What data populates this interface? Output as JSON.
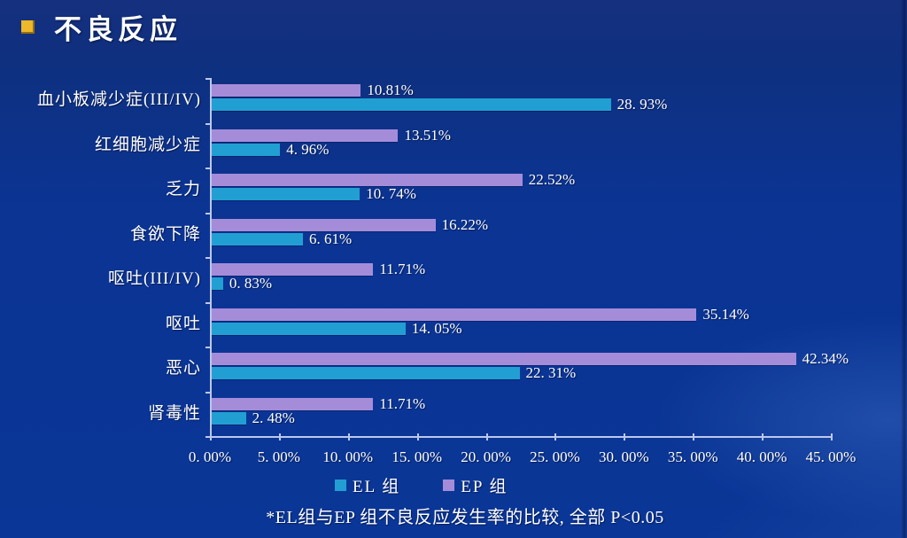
{
  "slide": {
    "title": "不良反应",
    "footnote": "*EL组与EP 组不良反应发生率的比较, 全部 P<0.05"
  },
  "colors": {
    "background_top": "#15307f",
    "background_bottom": "#0a3697",
    "el_series": "#219fd3",
    "ep_series": "#a58cd9",
    "axis": "#bdc7ec",
    "text": "#ffffff",
    "title_bullet": "#edb829"
  },
  "chart_data": {
    "type": "bar",
    "orientation": "horizontal",
    "title": "不良反应",
    "categories": [
      "血小板减少症(III/IV)",
      "红细胞减少症",
      "乏力",
      "食欲下降",
      "呕吐(III/IV)",
      "呕吐",
      "恶心",
      "肾毒性"
    ],
    "series": [
      {
        "name": "EL 组",
        "color": "#219fd3",
        "values": [
          28.93,
          4.96,
          10.74,
          6.61,
          0.83,
          14.05,
          22.31,
          2.48
        ],
        "value_labels": [
          "28. 93%",
          "4. 96%",
          "10. 74%",
          "6. 61%",
          "0. 83%",
          "14. 05%",
          "22. 31%",
          "2. 48%"
        ]
      },
      {
        "name": "EP 组",
        "color": "#a58cd9",
        "values": [
          10.81,
          13.51,
          22.52,
          16.22,
          11.71,
          35.14,
          42.34,
          11.71
        ],
        "value_labels": [
          "10.81%",
          "13.51%",
          "22.52%",
          "16.22%",
          "11.71%",
          "35.14%",
          "42.34%",
          "11.71%"
        ]
      }
    ],
    "x_axis": {
      "min": 0,
      "max": 45,
      "tick_step": 5,
      "tick_labels": [
        "0. 00%",
        "5. 00%",
        "10. 00%",
        "15. 00%",
        "20. 00%",
        "25. 00%",
        "30. 00%",
        "35. 00%",
        "40. 00%",
        "45. 00%"
      ]
    },
    "legend": {
      "position": "bottom",
      "entries": [
        "EL 组",
        "EP 组"
      ]
    },
    "grid": false,
    "footnote": "*EL组与EP 组不良反应发生率的比较, 全部 P<0.05"
  }
}
